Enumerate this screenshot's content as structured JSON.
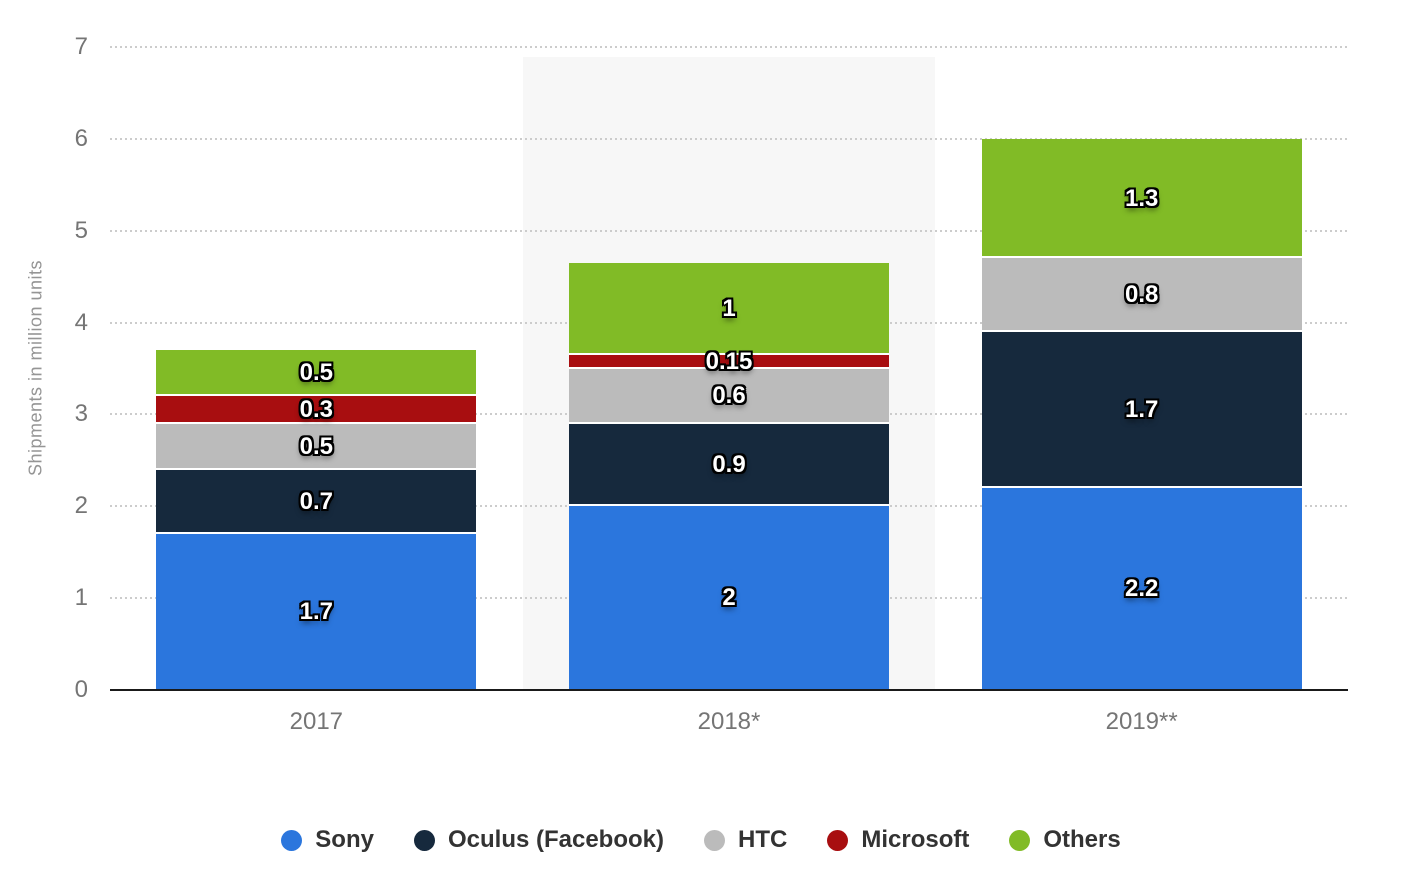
{
  "chart_data": {
    "type": "bar",
    "stacked": true,
    "title": "",
    "xlabel": "",
    "ylabel": "Shipments in million units",
    "categories": [
      "2017",
      "2018*",
      "2019**"
    ],
    "series": [
      {
        "name": "Sony",
        "color": "#2b76dd",
        "values": [
          1.7,
          2,
          2.2
        ]
      },
      {
        "name": "Oculus (Facebook)",
        "color": "#16293d",
        "values": [
          0.7,
          0.9,
          1.7
        ]
      },
      {
        "name": "HTC",
        "color": "#bbbbbb",
        "values": [
          0.5,
          0.6,
          0.8
        ]
      },
      {
        "name": "Microsoft",
        "color": "#a80e10",
        "values": [
          0.3,
          0.15,
          0
        ]
      },
      {
        "name": "Others",
        "color": "#81bb26",
        "values": [
          0.5,
          1,
          1.3
        ]
      }
    ],
    "segment_labels": [
      [
        "1.7",
        "2",
        "2.2"
      ],
      [
        "0.7",
        "0.9",
        "1.7"
      ],
      [
        "0.5",
        "0.6",
        "0.8"
      ],
      [
        "0.3",
        "0.15",
        ""
      ],
      [
        "0.5",
        "1",
        "1.3"
      ]
    ],
    "ylim": [
      0,
      7
    ],
    "yticks": [
      "0",
      "1",
      "2",
      "3",
      "4",
      "5",
      "6",
      "7"
    ],
    "grid": "horizontal dotted",
    "legend_position": "bottom",
    "highlighted_category": "2018*",
    "highlight_color": "#f7f7f7",
    "axis_line_color": "#1a1a1a",
    "tick_label_color": "#757575",
    "value_label_color": "#ffffff"
  }
}
